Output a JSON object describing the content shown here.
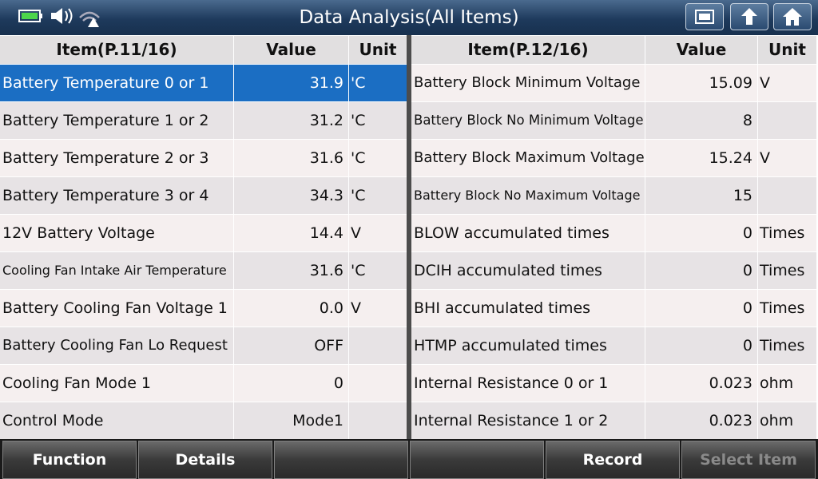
{
  "header": {
    "title": "Data Analysis(All Items)"
  },
  "tables": [
    {
      "columns": [
        "Item(P.11/16)",
        "Value",
        "Unit"
      ],
      "selected_row": 0,
      "rows": [
        {
          "item": "Battery Temperature 0 or 1",
          "value": "31.9",
          "unit": "'C"
        },
        {
          "item": "Battery Temperature 1 or 2",
          "value": "31.2",
          "unit": "'C"
        },
        {
          "item": "Battery Temperature 2 or 3",
          "value": "31.6",
          "unit": "'C"
        },
        {
          "item": "Battery Temperature 3 or 4",
          "value": "34.3",
          "unit": "'C"
        },
        {
          "item": "12V Battery Voltage",
          "value": "14.4",
          "unit": "V"
        },
        {
          "item": "Cooling Fan Intake Air Temperature",
          "value": "31.6",
          "unit": "'C"
        },
        {
          "item": "Battery Cooling Fan Voltage 1",
          "value": "0.0",
          "unit": "V"
        },
        {
          "item": "Battery Cooling Fan Lo Request",
          "value": "OFF"
        },
        {
          "item": "Cooling Fan Mode 1",
          "value": "0"
        },
        {
          "item": "Control Mode",
          "value": "Mode1"
        }
      ]
    },
    {
      "columns": [
        "Item(P.12/16)",
        "Value",
        "Unit"
      ],
      "rows": [
        {
          "item": "Battery Block Minimum Voltage",
          "value": "15.09",
          "unit": "V"
        },
        {
          "item": "Battery Block No Minimum Voltage",
          "value": "8"
        },
        {
          "item": "Battery Block Maximum Voltage",
          "value": "15.24",
          "unit": "V"
        },
        {
          "item": "Battery Block No Maximum Voltage",
          "value": "15"
        },
        {
          "item": "BLOW accumulated times",
          "value": "0",
          "unit": "Times"
        },
        {
          "item": "DCIH accumulated times",
          "value": "0",
          "unit": "Times"
        },
        {
          "item": "BHI accumulated times",
          "value": "0",
          "unit": "Times"
        },
        {
          "item": "HTMP accumulated times",
          "value": "0",
          "unit": "Times"
        },
        {
          "item": "Internal Resistance 0 or 1",
          "value": "0.023",
          "unit": "ohm"
        },
        {
          "item": "Internal Resistance 1 or 2",
          "value": "0.023",
          "unit": "ohm"
        }
      ]
    }
  ],
  "footer": {
    "buttons": [
      {
        "label": "Function",
        "enabled": true
      },
      {
        "label": "Details",
        "enabled": true
      },
      {
        "label": "Record",
        "enabled": true
      },
      {
        "label": "Select Item",
        "enabled": false
      }
    ]
  }
}
